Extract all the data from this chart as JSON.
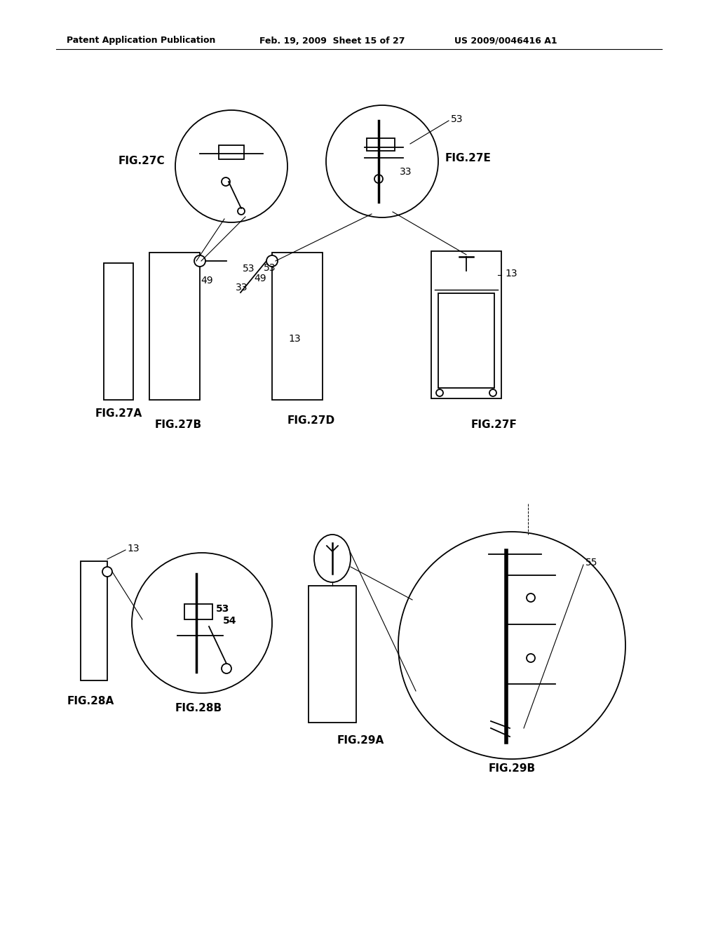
{
  "bg_color": "#ffffff",
  "header_left": "Patent Application Publication",
  "header_mid": "Feb. 19, 2009  Sheet 15 of 27",
  "header_right": "US 2009/0046416 A1",
  "fig_width": 10.24,
  "fig_height": 13.2
}
